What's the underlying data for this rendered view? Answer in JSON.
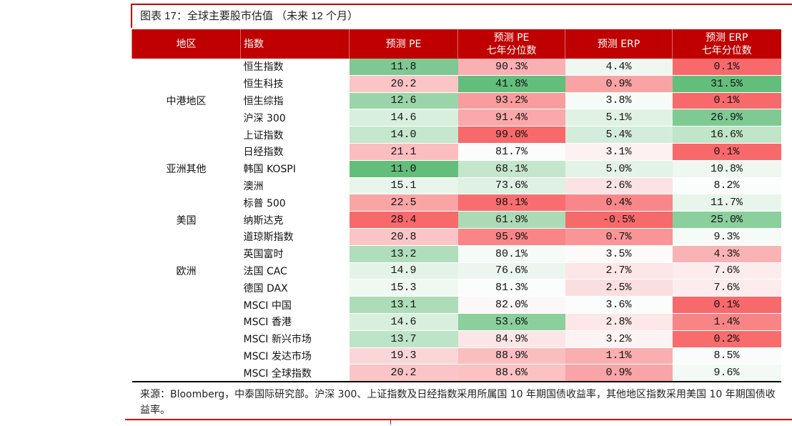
{
  "title": "图表 17：全球主要股市估值 （未来 12 个月）",
  "headers": [
    "地区",
    "指数",
    "预测 PE",
    "预测 PE\n七年分位数",
    "预测 ERP",
    "预测 ERP\n七年分位数"
  ],
  "groups": [
    {
      "region": "中港地区",
      "rows": [
        {
          "index": "恒生指数",
          "cells": [
            [
              "11.8",
              "#7ec893"
            ],
            [
              "90.3%",
              "#fab0b2"
            ],
            [
              "4.4%",
              "#eef7f0"
            ],
            [
              "0.1%",
              "#f8696b"
            ]
          ]
        },
        {
          "index": "恒生科技",
          "cells": [
            [
              "20.2",
              "#fbc5c8"
            ],
            [
              "41.8%",
              "#63be7b"
            ],
            [
              "0.9%",
              "#f9a3a4"
            ],
            [
              "31.5%",
              "#63be7b"
            ]
          ]
        },
        {
          "index": "恒生综指",
          "cells": [
            [
              "12.6",
              "#9ad5a9"
            ],
            [
              "93.2%",
              "#f99c9e"
            ],
            [
              "3.8%",
              "#f7fbf8"
            ],
            [
              "0.1%",
              "#f8696b"
            ]
          ]
        },
        {
          "index": "沪深 300",
          "cells": [
            [
              "14.6",
              "#d8efdd"
            ],
            [
              "91.4%",
              "#faa8aa"
            ],
            [
              "5.1%",
              "#e0f2e4"
            ],
            [
              "26.9%",
              "#7fca93"
            ]
          ]
        },
        {
          "index": "上证指数",
          "cells": [
            [
              "14.0",
              "#c5e7cd"
            ],
            [
              "99.0%",
              "#f8696b"
            ],
            [
              "5.4%",
              "#d4edda"
            ],
            [
              "16.6%",
              "#c0e5c9"
            ]
          ]
        }
      ]
    },
    {
      "region": "亚洲其他",
      "rows": [
        {
          "index": "日经指数",
          "cells": [
            [
              "21.1",
              "#fbbdc0"
            ],
            [
              "81.7%",
              "#fbfcfc"
            ],
            [
              "3.1%",
              "#fdf1f2"
            ],
            [
              "0.1%",
              "#f8696b"
            ]
          ]
        },
        {
          "index": "韩国 KOSPI",
          "cells": [
            [
              "11.0",
              "#63be7b"
            ],
            [
              "68.1%",
              "#c4e6cc"
            ],
            [
              "5.0%",
              "#e4f3e7"
            ],
            [
              "10.8%",
              "#eef7f0"
            ]
          ]
        },
        {
          "index": "澳洲",
          "cells": [
            [
              "15.1",
              "#e8f5eb"
            ],
            [
              "73.6%",
              "#dff1e3"
            ],
            [
              "2.6%",
              "#fbe3e4"
            ],
            [
              "8.2%",
              "#fbfcfc"
            ]
          ]
        }
      ]
    },
    {
      "region": "美国",
      "rows": [
        {
          "index": "标普 500",
          "cells": [
            [
              "22.5",
              "#faa4a6"
            ],
            [
              "98.1%",
              "#f86e70"
            ],
            [
              "0.4%",
              "#f98789"
            ],
            [
              "11.7%",
              "#e8f5eb"
            ]
          ]
        },
        {
          "index": "纳斯达克",
          "cells": [
            [
              "28.4",
              "#f8696b"
            ],
            [
              "61.9%",
              "#abdab6"
            ],
            [
              "-0.5%",
              "#f8696b"
            ],
            [
              "25.0%",
              "#8acf9c"
            ]
          ]
        },
        {
          "index": "道琼斯指数",
          "cells": [
            [
              "20.8",
              "#fbc5c7"
            ],
            [
              "95.9%",
              "#f98587"
            ],
            [
              "0.7%",
              "#f99597"
            ],
            [
              "9.3%",
              "#f6fbf7"
            ]
          ]
        }
      ]
    },
    {
      "region": "欧洲",
      "rows": [
        {
          "index": "英国富时",
          "cells": [
            [
              "13.2",
              "#b0ddbb"
            ],
            [
              "80.1%",
              "#f5fbf6"
            ],
            [
              "3.5%",
              "#fdfafa"
            ],
            [
              "4.3%",
              "#fab3b5"
            ]
          ]
        },
        {
          "index": "法国 CAC",
          "cells": [
            [
              "14.9",
              "#e4f3e7"
            ],
            [
              "76.6%",
              "#ebf6ee"
            ],
            [
              "2.7%",
              "#fce6e7"
            ],
            [
              "7.6%",
              "#fcecee"
            ]
          ]
        },
        {
          "index": "德国 DAX",
          "cells": [
            [
              "15.3",
              "#f0f8f2"
            ],
            [
              "81.3%",
              "#fbfcfc"
            ],
            [
              "2.5%",
              "#fbdfe0"
            ],
            [
              "7.6%",
              "#fcecee"
            ]
          ]
        }
      ]
    },
    {
      "region": "",
      "rows": [
        {
          "index": "MSCI 中国",
          "cells": [
            [
              "13.1",
              "#acdcb8"
            ],
            [
              "82.0%",
              "#fcf7f8"
            ],
            [
              "3.6%",
              "#fbfcfc"
            ],
            [
              "0.1%",
              "#f8696b"
            ]
          ]
        },
        {
          "index": "MSCI 香港",
          "cells": [
            [
              "14.6",
              "#d8efdd"
            ],
            [
              "53.6%",
              "#8acf9c"
            ],
            [
              "2.8%",
              "#fce8e9"
            ],
            [
              "1.4%",
              "#f98486"
            ]
          ]
        },
        {
          "index": "MSCI 新兴市场",
          "cells": [
            [
              "13.7",
              "#bde4c6"
            ],
            [
              "84.9%",
              "#fbe5e6"
            ],
            [
              "3.2%",
              "#fdf3f4"
            ],
            [
              "0.2%",
              "#f86c6e"
            ]
          ]
        },
        {
          "index": "MSCI 发达市场",
          "cells": [
            [
              "19.3",
              "#fbd6d8"
            ],
            [
              "88.9%",
              "#fbbec0"
            ],
            [
              "1.1%",
              "#faaeb0"
            ],
            [
              "8.5%",
              "#fcfbfb"
            ]
          ]
        },
        {
          "index": "MSCI 全球指数",
          "cells": [
            [
              "20.2",
              "#fbc5c7"
            ],
            [
              "88.6%",
              "#fbc1c3"
            ],
            [
              "0.9%",
              "#f9a4a6"
            ],
            [
              "9.6%",
              "#f3f9f4"
            ]
          ]
        }
      ]
    }
  ],
  "note": "来源：Bloomberg，中泰国际研究部。沪深 300、上证指数及日经指数采用所属国 10 年期国债收益率，其他地区指数采用美国 10 年期国债收益率。",
  "colors": {
    "header": "#c00000",
    "accent_line": "#d40000"
  }
}
